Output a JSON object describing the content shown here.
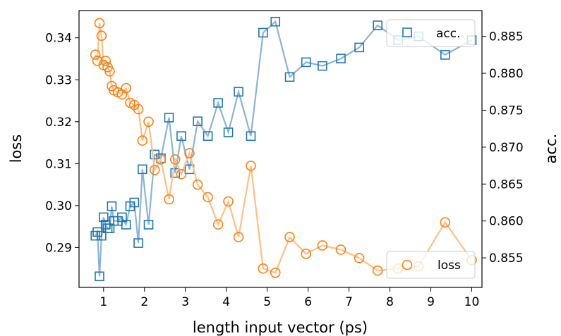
{
  "chart_data": {
    "type": "line",
    "xlabel": "length input vector (ps)",
    "ylabel_left": "loss",
    "ylabel_right": "acc.",
    "xlim": [
      0.4,
      10.25
    ],
    "ylim_left": [
      0.2805,
      0.3465
    ],
    "ylim_right": [
      0.851,
      0.8885
    ],
    "x_ticks": [
      1,
      2,
      3,
      4,
      5,
      6,
      7,
      8,
      9,
      10
    ],
    "y_ticks_left": [
      0.29,
      0.3,
      0.31,
      0.32,
      0.33,
      0.34
    ],
    "y_ticks_right": [
      0.855,
      0.86,
      0.865,
      0.87,
      0.875,
      0.88,
      0.885
    ],
    "x_tick_labels": [
      "1",
      "2",
      "3",
      "4",
      "5",
      "6",
      "7",
      "8",
      "9",
      "10"
    ],
    "y_tick_labels_left": [
      "0.29",
      "0.30",
      "0.31",
      "0.32",
      "0.33",
      "0.34"
    ],
    "y_tick_labels_right": [
      "0.855",
      "0.860",
      "0.865",
      "0.870",
      "0.875",
      "0.880",
      "0.885"
    ],
    "legend_acc_position": "upper-right",
    "legend_loss_position": "lower-right",
    "grid": false,
    "series": [
      {
        "name": "acc.",
        "axis": "right",
        "marker": "square",
        "color": "#1f77b4",
        "line_color": "#8cb4d6",
        "x": [
          0.8,
          0.85,
          0.9,
          0.95,
          1.0,
          1.05,
          1.1,
          1.15,
          1.2,
          1.25,
          1.35,
          1.45,
          1.55,
          1.65,
          1.75,
          1.85,
          1.95,
          2.1,
          2.25,
          2.4,
          2.6,
          2.75,
          2.9,
          3.1,
          3.3,
          3.55,
          3.8,
          4.05,
          4.3,
          4.6,
          4.9,
          5.2,
          5.55,
          5.95,
          6.35,
          6.8,
          7.25,
          7.7,
          8.2,
          8.7,
          9.35,
          10.0
        ],
        "y": [
          0.858,
          0.8585,
          0.8525,
          0.858,
          0.8605,
          0.8595,
          0.859,
          0.859,
          0.862,
          0.86,
          0.86,
          0.8605,
          0.8595,
          0.862,
          0.8625,
          0.857,
          0.867,
          0.8595,
          0.869,
          0.8685,
          0.874,
          0.8665,
          0.8715,
          0.867,
          0.8735,
          0.8715,
          0.876,
          0.872,
          0.8775,
          0.8715,
          0.8855,
          0.887,
          0.8795,
          0.8815,
          0.881,
          0.882,
          0.8835,
          0.8865,
          0.8845,
          0.885,
          0.8825,
          0.8845
        ]
      },
      {
        "name": "loss",
        "axis": "left",
        "marker": "circle",
        "color": "#ff7f0e",
        "line_color": "#ffbf86",
        "x": [
          0.8,
          0.85,
          0.9,
          0.95,
          1.0,
          1.05,
          1.1,
          1.15,
          1.2,
          1.25,
          1.35,
          1.45,
          1.55,
          1.65,
          1.75,
          1.85,
          1.95,
          2.1,
          2.25,
          2.4,
          2.6,
          2.75,
          2.9,
          3.1,
          3.3,
          3.55,
          3.8,
          4.05,
          4.3,
          4.6,
          4.9,
          5.2,
          5.55,
          5.95,
          6.35,
          6.8,
          7.25,
          7.7,
          8.2,
          8.7,
          9.35,
          10.0
        ],
        "y": [
          0.336,
          0.3345,
          0.3435,
          0.3405,
          0.3335,
          0.3345,
          0.333,
          0.332,
          0.3285,
          0.3275,
          0.327,
          0.3265,
          0.328,
          0.3245,
          0.324,
          0.323,
          0.3155,
          0.32,
          0.3085,
          0.311,
          0.3015,
          0.311,
          0.3075,
          0.3125,
          0.305,
          0.302,
          0.2955,
          0.301,
          0.2925,
          0.3095,
          0.285,
          0.284,
          0.2925,
          0.2885,
          0.2905,
          0.2895,
          0.2875,
          0.2845,
          0.285,
          0.2855,
          0.296,
          0.287
        ]
      }
    ]
  }
}
